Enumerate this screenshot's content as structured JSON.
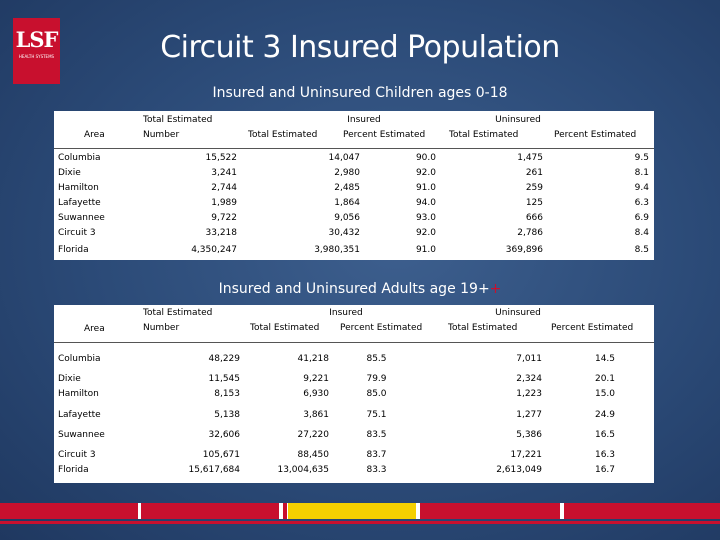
{
  "logo": {
    "mark": "LSF",
    "sub": "HEALTH SYSTEMS"
  },
  "title": "Circuit 3 Insured Population",
  "children": {
    "subtitle": "Insured and Uninsured Children ages 0-18",
    "headers": {
      "area": "Area",
      "total_estimated_1": "Total  Estimated",
      "total_estimated_2": "Number",
      "insured": "Insured",
      "uninsured": "Uninsured",
      "ins_total": "Total  Estimated",
      "ins_pct": "Percent Estimated",
      "unins_total": "Total  Estimated",
      "unins_pct": "Percent Estimated"
    },
    "rows": [
      {
        "area": "Columbia",
        "total": "15,522",
        "ins_total": "14,047",
        "ins_pct": "90.0",
        "unins_total": "1,475",
        "unins_pct": "9.5"
      },
      {
        "area": "Dixie",
        "total": "3,241",
        "ins_total": "2,980",
        "ins_pct": "92.0",
        "unins_total": "261",
        "unins_pct": "8.1"
      },
      {
        "area": "Hamilton",
        "total": "2,744",
        "ins_total": "2,485",
        "ins_pct": "91.0",
        "unins_total": "259",
        "unins_pct": "9.4"
      },
      {
        "area": "Lafayette",
        "total": "1,989",
        "ins_total": "1,864",
        "ins_pct": "94.0",
        "unins_total": "125",
        "unins_pct": "6.3"
      },
      {
        "area": "Suwannee",
        "total": "9,722",
        "ins_total": "9,056",
        "ins_pct": "93.0",
        "unins_total": "666",
        "unins_pct": "6.9"
      },
      {
        "area": "Circuit 3",
        "total": "33,218",
        "ins_total": "30,432",
        "ins_pct": "92.0",
        "unins_total": "2,786",
        "unins_pct": "8.4"
      },
      {
        "area": "Florida",
        "total": "4,350,247",
        "ins_total": "3,980,351",
        "ins_pct": "91.0",
        "unins_total": "369,896",
        "unins_pct": "8.5"
      }
    ]
  },
  "adults": {
    "subtitle": "Insured and Uninsured Adults age 19+",
    "subtitle_mark": "+",
    "headers": {
      "area": "Area",
      "total_estimated_1": "Total  Estimated",
      "total_estimated_2": "Number",
      "insured": "Insured",
      "uninsured": "Uninsured",
      "ins_total": "Total  Estimated",
      "ins_pct": "Percent Estimated",
      "unins_total": "Total  Estimated",
      "unins_pct": "Percent Estimated"
    },
    "rows": [
      {
        "area": "Columbia",
        "area2": "",
        "total": "48,229",
        "total2": "",
        "ins_total": "41,218",
        "ins_total2": "",
        "ins_pct": "85.5",
        "ins_pct2": "",
        "unins_total": "7,011",
        "unins_total2": "",
        "unins_pct": "14.5",
        "unins_pct2": ""
      },
      {
        "area": "Dixie",
        "area2": "Hamilton",
        "total": "11,545",
        "total2": "8,153",
        "ins_total": "9,221",
        "ins_total2": "6,930",
        "ins_pct": "79.9",
        "ins_pct2": "85.0",
        "unins_total": "2,324",
        "unins_total2": "1,223",
        "unins_pct": "20.1",
        "unins_pct2": "15.0"
      },
      {
        "area": "Lafayette",
        "area2": "",
        "total": "5,138",
        "total2": "",
        "ins_total": "3,861",
        "ins_total2": "",
        "ins_pct": "75.1",
        "ins_pct2": "",
        "unins_total": "1,277",
        "unins_total2": "",
        "unins_pct": "24.9",
        "unins_pct2": ""
      },
      {
        "area": "Suwannee",
        "area2": "",
        "total": "32,606",
        "total2": "",
        "ins_total": "27,220",
        "ins_total2": "",
        "ins_pct": "83.5",
        "ins_pct2": "",
        "unins_total": "5,386",
        "unins_total2": "",
        "unins_pct": "16.5",
        "unins_pct2": ""
      },
      {
        "area": "Circuit 3",
        "area2": "Florida",
        "total": "105,671",
        "total2": "15,617,684",
        "ins_total": "88,450",
        "ins_total2": "13,004,635",
        "ins_pct": "83.7",
        "ins_pct2": "83.3",
        "unins_total": "17,221",
        "unins_total2": "2,613,049",
        "unins_pct": "16.3",
        "unins_pct2": "16.7"
      }
    ]
  },
  "colors": {
    "brand_red": "#c8102e",
    "background": "#2b4a77",
    "stripes": [
      "#c8102e",
      "#ffffff",
      "#c8102e",
      "#ffffff",
      "#c8102e",
      "#ffffff",
      "#f5d000",
      "#ffffff",
      "#c8102e",
      "#ffffff",
      "#c8102e"
    ]
  }
}
